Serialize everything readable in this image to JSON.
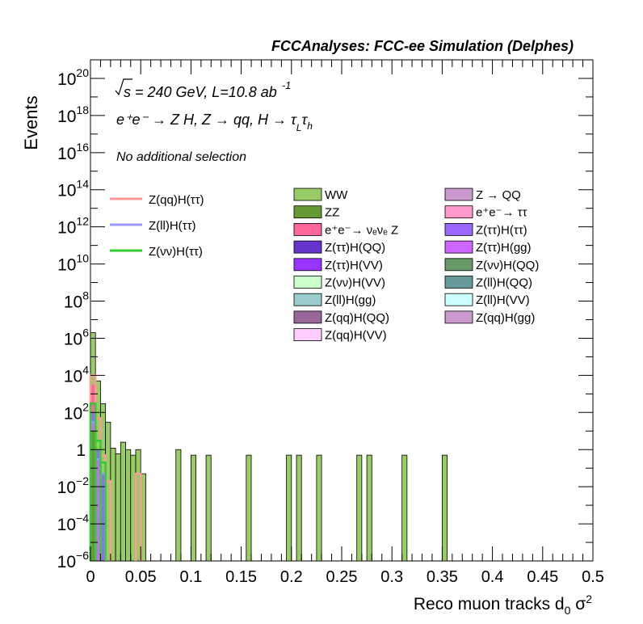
{
  "chart_data": {
    "type": "bar",
    "title": "FCCAnalyses: FCC-ee Simulation (Delphes)",
    "xlabel": "Reco muon tracks d",
    "xlabel_sub": "0",
    "xlabel_tail": " σ",
    "xlabel_sup": "2",
    "ylabel": "Events",
    "xlim": [
      0,
      0.5
    ],
    "ylim": [
      1e-06,
      1e+21
    ],
    "yscale": "log",
    "x_ticks": [
      "0",
      "0.05",
      "0.1",
      "0.15",
      "0.2",
      "0.25",
      "0.3",
      "0.35",
      "0.4",
      "0.45",
      "0.5"
    ],
    "y_ticks": [
      {
        "value": 1e-06,
        "base": "10",
        "exp": "−6"
      },
      {
        "value": 0.0001,
        "base": "10",
        "exp": "−4"
      },
      {
        "value": 0.01,
        "base": "10",
        "exp": "−2"
      },
      {
        "value": 1,
        "base": "1",
        "exp": ""
      },
      {
        "value": 100.0,
        "base": "10",
        "exp": "2"
      },
      {
        "value": 10000.0,
        "base": "10",
        "exp": "4"
      },
      {
        "value": 1000000.0,
        "base": "10",
        "exp": "6"
      },
      {
        "value": 100000000.0,
        "base": "10",
        "exp": "8"
      },
      {
        "value": 10000000000.0,
        "base": "10",
        "exp": "10"
      },
      {
        "value": 1000000000000.0,
        "base": "10",
        "exp": "12"
      },
      {
        "value": 100000000000000.0,
        "base": "10",
        "exp": "14"
      },
      {
        "value": 1e+16,
        "base": "10",
        "exp": "16"
      },
      {
        "value": 1e+18,
        "base": "10",
        "exp": "18"
      },
      {
        "value": 1e+20,
        "base": "10",
        "exp": "20"
      }
    ],
    "annotations": {
      "energy": "s = 240 GeV, L=10.8 ab",
      "energy_sup": "-1",
      "process": "e⁺e⁻ → Z H, Z → qq, H → τ",
      "process_sub1": "L",
      "process_tau": "τ",
      "process_sub2": "h",
      "selection": "No additional selection"
    },
    "signal_legend": [
      {
        "name": "Z(qq)H(ττ)",
        "color": "#ff9999"
      },
      {
        "name": "Z(ll)H(ττ)",
        "color": "#9999ff"
      },
      {
        "name": "Z(νν)H(ττ)",
        "color": "#33cc33"
      }
    ],
    "background_legend": [
      {
        "name": "WW",
        "color": "#99cc66"
      },
      {
        "name": "Z → QQ",
        "color": "#cc99cc"
      },
      {
        "name": "ZZ",
        "color": "#669933"
      },
      {
        "name": "e⁺e⁻→ ττ",
        "color": "#ff99cc"
      },
      {
        "name": "e⁺e⁻→ νₑνₑ Z",
        "color": "#ff6699"
      },
      {
        "name": "Z(ττ)H(ττ)",
        "color": "#9966ff"
      },
      {
        "name": "Z(ττ)H(QQ)",
        "color": "#6633cc"
      },
      {
        "name": "Z(ττ)H(gg)",
        "color": "#cc66ff"
      },
      {
        "name": "Z(ττ)H(VV)",
        "color": "#9933ff"
      },
      {
        "name": "Z(νν)H(QQ)",
        "color": "#669966"
      },
      {
        "name": "Z(νν)H(VV)",
        "color": "#ccffcc"
      },
      {
        "name": "Z(ll)H(QQ)",
        "color": "#669999"
      },
      {
        "name": "Z(ll)H(gg)",
        "color": "#99cccc"
      },
      {
        "name": "Z(ll)H(VV)",
        "color": "#ccffff"
      },
      {
        "name": "Z(qq)H(QQ)",
        "color": "#996699"
      },
      {
        "name": "Z(qq)H(gg)",
        "color": "#cc99cc"
      },
      {
        "name": "Z(qq)H(VV)",
        "color": "#ffccff"
      }
    ],
    "bin_width": 0.005,
    "stack_bins": [
      {
        "x": 0.0,
        "value": 2000000,
        "color": "#99cc66"
      },
      {
        "x": 0.005,
        "value": 5000,
        "color": "#99cc66"
      },
      {
        "x": 0.01,
        "value": 300,
        "color": "#99cc66"
      },
      {
        "x": 0.015,
        "value": 30,
        "color": "#99cc66"
      },
      {
        "x": 0.02,
        "value": 1.2,
        "color": "#99cc66"
      },
      {
        "x": 0.025,
        "value": 0.6,
        "color": "#99cc66"
      },
      {
        "x": 0.03,
        "value": 2.5,
        "color": "#99cc66"
      },
      {
        "x": 0.035,
        "value": 1.0,
        "color": "#99cc66"
      },
      {
        "x": 0.04,
        "value": 0.5,
        "color": "#99cc66"
      },
      {
        "x": 0.045,
        "value": 1.0,
        "color": "#99cc66"
      },
      {
        "x": 0.05,
        "value": 0.05,
        "color": "#99cc66"
      },
      {
        "x": 0.085,
        "value": 1.0,
        "color": "#99cc66"
      },
      {
        "x": 0.1,
        "value": 0.5,
        "color": "#99cc66"
      },
      {
        "x": 0.115,
        "value": 0.5,
        "color": "#99cc66"
      },
      {
        "x": 0.155,
        "value": 0.5,
        "color": "#99cc66"
      },
      {
        "x": 0.195,
        "value": 0.5,
        "color": "#99cc66"
      },
      {
        "x": 0.205,
        "value": 0.5,
        "color": "#99cc66"
      },
      {
        "x": 0.225,
        "value": 0.5,
        "color": "#99cc66"
      },
      {
        "x": 0.265,
        "value": 0.5,
        "color": "#99cc66"
      },
      {
        "x": 0.275,
        "value": 0.5,
        "color": "#99cc66"
      },
      {
        "x": 0.31,
        "value": 0.5,
        "color": "#99cc66"
      },
      {
        "x": 0.35,
        "value": 0.5,
        "color": "#99cc66"
      }
    ],
    "overlay_bins": [
      {
        "x": 0.0,
        "value": 3000,
        "color": "#ff6699"
      },
      {
        "x": 0.005,
        "value": 0.05,
        "color": "#ff6699"
      },
      {
        "x": 0.0,
        "value": 100,
        "color": "#9966ff"
      },
      {
        "x": 0.005,
        "value": 1,
        "color": "#9966ff"
      },
      {
        "x": 0.01,
        "value": 0.05,
        "color": "#9966ff"
      },
      {
        "x": 0.0,
        "value": 30,
        "color": "#cc66ff"
      },
      {
        "x": 0.005,
        "value": 0.3,
        "color": "#cc66ff"
      },
      {
        "x": 0.0,
        "value": 10,
        "color": "#669933"
      }
    ],
    "signal_lines": [
      {
        "name": "Z(qq)H(ττ)",
        "color": "#ff9999",
        "bins": [
          {
            "x": 0.0,
            "value": 10000
          },
          {
            "x": 0.005,
            "value": 50
          },
          {
            "x": 0.01,
            "value": 0.5
          },
          {
            "x": 0.015,
            "value": 0.02
          },
          {
            "x": 0.045,
            "value": 0.05
          }
        ]
      },
      {
        "name": "Z(ll)H(ττ)",
        "color": "#9999ff",
        "bins": [
          {
            "x": 0.0,
            "value": 30
          },
          {
            "x": 0.005,
            "value": 0.3
          },
          {
            "x": 0.01,
            "value": 0.05
          }
        ]
      },
      {
        "name": "Z(νν)H(ττ)",
        "color": "#33cc33",
        "bins": [
          {
            "x": 0.0,
            "value": 300
          },
          {
            "x": 0.005,
            "value": 3
          },
          {
            "x": 0.01,
            "value": 0.2
          }
        ]
      }
    ]
  }
}
